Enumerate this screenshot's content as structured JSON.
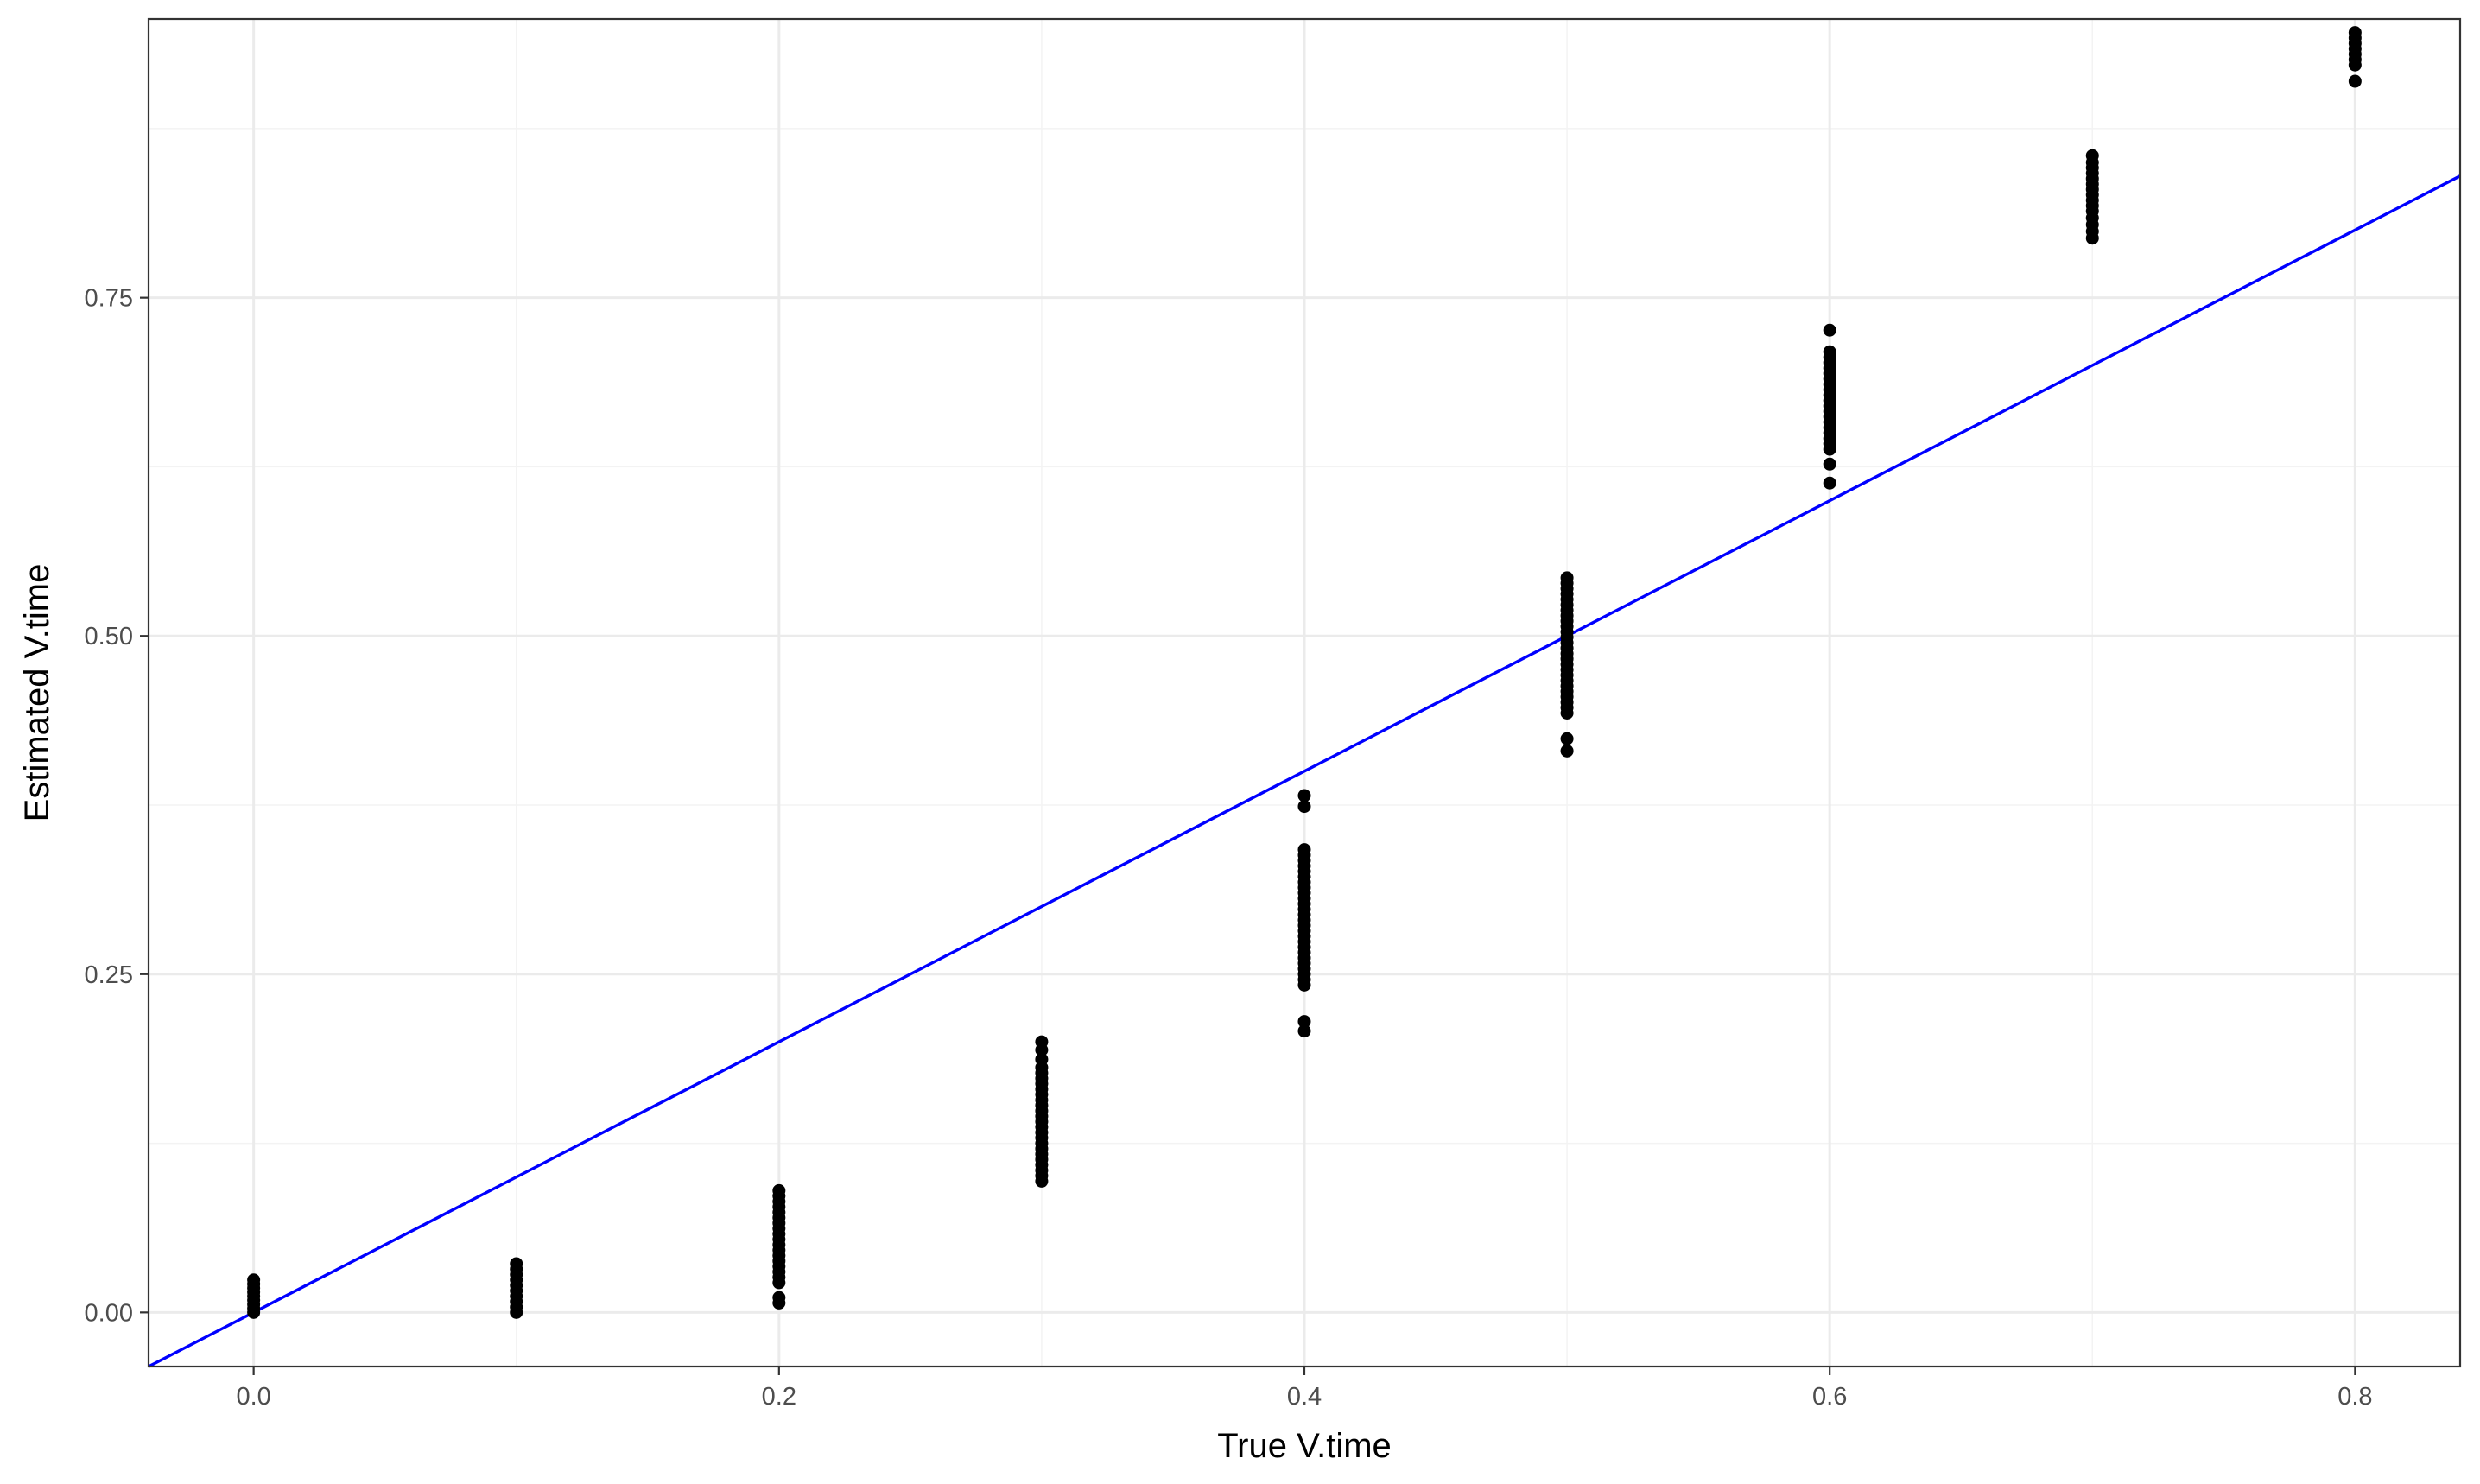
{
  "chart_data": {
    "type": "scatter",
    "xlabel": "True V.time",
    "ylabel": "Estimated V.time",
    "xlim": [
      -0.04,
      0.84
    ],
    "ylim": [
      -0.04,
      0.956
    ],
    "x_ticks": [
      {
        "value": 0.0,
        "label": "0.0"
      },
      {
        "value": 0.2,
        "label": "0.2"
      },
      {
        "value": 0.4,
        "label": "0.4"
      },
      {
        "value": 0.6,
        "label": "0.6"
      },
      {
        "value": 0.8,
        "label": "0.8"
      }
    ],
    "y_ticks": [
      {
        "value": 0.0,
        "label": "0.00"
      },
      {
        "value": 0.25,
        "label": "0.25"
      },
      {
        "value": 0.5,
        "label": "0.50"
      },
      {
        "value": 0.75,
        "label": "0.75"
      }
    ],
    "x_minor_gridlines": [
      0.1,
      0.3,
      0.5,
      0.7
    ],
    "y_minor_gridlines": [
      0.125,
      0.375,
      0.625,
      0.875
    ],
    "grid": true,
    "reference_line": {
      "type": "identity",
      "slope": 1,
      "intercept": 0,
      "color": "#0000ff"
    },
    "point_color": "#000000",
    "series": [
      {
        "points": [
          {
            "x": 0.0,
            "y": 0.0
          },
          {
            "x": 0.0,
            "y": 0.003
          },
          {
            "x": 0.0,
            "y": 0.006
          },
          {
            "x": 0.0,
            "y": 0.009
          },
          {
            "x": 0.0,
            "y": 0.012
          },
          {
            "x": 0.0,
            "y": 0.015
          },
          {
            "x": 0.0,
            "y": 0.018
          },
          {
            "x": 0.0,
            "y": 0.021
          },
          {
            "x": 0.0,
            "y": 0.024
          },
          {
            "x": 0.1,
            "y": 0.0
          },
          {
            "x": 0.1,
            "y": 0.004
          },
          {
            "x": 0.1,
            "y": 0.008
          },
          {
            "x": 0.1,
            "y": 0.012
          },
          {
            "x": 0.1,
            "y": 0.016
          },
          {
            "x": 0.1,
            "y": 0.02
          },
          {
            "x": 0.1,
            "y": 0.024
          },
          {
            "x": 0.1,
            "y": 0.028
          },
          {
            "x": 0.1,
            "y": 0.032
          },
          {
            "x": 0.1,
            "y": 0.036
          },
          {
            "x": 0.2,
            "y": 0.007
          },
          {
            "x": 0.2,
            "y": 0.011
          },
          {
            "x": 0.2,
            "y": 0.022
          },
          {
            "x": 0.2,
            "y": 0.026
          },
          {
            "x": 0.2,
            "y": 0.03
          },
          {
            "x": 0.2,
            "y": 0.034
          },
          {
            "x": 0.2,
            "y": 0.038
          },
          {
            "x": 0.2,
            "y": 0.042
          },
          {
            "x": 0.2,
            "y": 0.046
          },
          {
            "x": 0.2,
            "y": 0.05
          },
          {
            "x": 0.2,
            "y": 0.054
          },
          {
            "x": 0.2,
            "y": 0.058
          },
          {
            "x": 0.2,
            "y": 0.062
          },
          {
            "x": 0.2,
            "y": 0.066
          },
          {
            "x": 0.2,
            "y": 0.07
          },
          {
            "x": 0.2,
            "y": 0.074
          },
          {
            "x": 0.2,
            "y": 0.078
          },
          {
            "x": 0.2,
            "y": 0.082
          },
          {
            "x": 0.2,
            "y": 0.086
          },
          {
            "x": 0.2,
            "y": 0.09
          },
          {
            "x": 0.3,
            "y": 0.097
          },
          {
            "x": 0.3,
            "y": 0.101
          },
          {
            "x": 0.3,
            "y": 0.105
          },
          {
            "x": 0.3,
            "y": 0.109
          },
          {
            "x": 0.3,
            "y": 0.113
          },
          {
            "x": 0.3,
            "y": 0.117
          },
          {
            "x": 0.3,
            "y": 0.121
          },
          {
            "x": 0.3,
            "y": 0.125
          },
          {
            "x": 0.3,
            "y": 0.129
          },
          {
            "x": 0.3,
            "y": 0.133
          },
          {
            "x": 0.3,
            "y": 0.137
          },
          {
            "x": 0.3,
            "y": 0.141
          },
          {
            "x": 0.3,
            "y": 0.145
          },
          {
            "x": 0.3,
            "y": 0.149
          },
          {
            "x": 0.3,
            "y": 0.153
          },
          {
            "x": 0.3,
            "y": 0.157
          },
          {
            "x": 0.3,
            "y": 0.161
          },
          {
            "x": 0.3,
            "y": 0.165
          },
          {
            "x": 0.3,
            "y": 0.169
          },
          {
            "x": 0.3,
            "y": 0.173
          },
          {
            "x": 0.3,
            "y": 0.177
          },
          {
            "x": 0.3,
            "y": 0.181
          },
          {
            "x": 0.3,
            "y": 0.187
          },
          {
            "x": 0.3,
            "y": 0.194
          },
          {
            "x": 0.3,
            "y": 0.2
          },
          {
            "x": 0.4,
            "y": 0.208
          },
          {
            "x": 0.4,
            "y": 0.215
          },
          {
            "x": 0.4,
            "y": 0.242
          },
          {
            "x": 0.4,
            "y": 0.246
          },
          {
            "x": 0.4,
            "y": 0.25
          },
          {
            "x": 0.4,
            "y": 0.254
          },
          {
            "x": 0.4,
            "y": 0.258
          },
          {
            "x": 0.4,
            "y": 0.262
          },
          {
            "x": 0.4,
            "y": 0.266
          },
          {
            "x": 0.4,
            "y": 0.27
          },
          {
            "x": 0.4,
            "y": 0.274
          },
          {
            "x": 0.4,
            "y": 0.278
          },
          {
            "x": 0.4,
            "y": 0.282
          },
          {
            "x": 0.4,
            "y": 0.286
          },
          {
            "x": 0.4,
            "y": 0.29
          },
          {
            "x": 0.4,
            "y": 0.294
          },
          {
            "x": 0.4,
            "y": 0.298
          },
          {
            "x": 0.4,
            "y": 0.302
          },
          {
            "x": 0.4,
            "y": 0.306
          },
          {
            "x": 0.4,
            "y": 0.31
          },
          {
            "x": 0.4,
            "y": 0.314
          },
          {
            "x": 0.4,
            "y": 0.318
          },
          {
            "x": 0.4,
            "y": 0.322
          },
          {
            "x": 0.4,
            "y": 0.326
          },
          {
            "x": 0.4,
            "y": 0.33
          },
          {
            "x": 0.4,
            "y": 0.334
          },
          {
            "x": 0.4,
            "y": 0.338
          },
          {
            "x": 0.4,
            "y": 0.342
          },
          {
            "x": 0.4,
            "y": 0.374
          },
          {
            "x": 0.4,
            "y": 0.382
          },
          {
            "x": 0.5,
            "y": 0.415
          },
          {
            "x": 0.5,
            "y": 0.424
          },
          {
            "x": 0.5,
            "y": 0.443
          },
          {
            "x": 0.5,
            "y": 0.447
          },
          {
            "x": 0.5,
            "y": 0.451
          },
          {
            "x": 0.5,
            "y": 0.455
          },
          {
            "x": 0.5,
            "y": 0.459
          },
          {
            "x": 0.5,
            "y": 0.463
          },
          {
            "x": 0.5,
            "y": 0.467
          },
          {
            "x": 0.5,
            "y": 0.471
          },
          {
            "x": 0.5,
            "y": 0.475
          },
          {
            "x": 0.5,
            "y": 0.479
          },
          {
            "x": 0.5,
            "y": 0.483
          },
          {
            "x": 0.5,
            "y": 0.487
          },
          {
            "x": 0.5,
            "y": 0.491
          },
          {
            "x": 0.5,
            "y": 0.495
          },
          {
            "x": 0.5,
            "y": 0.499
          },
          {
            "x": 0.5,
            "y": 0.503
          },
          {
            "x": 0.5,
            "y": 0.507
          },
          {
            "x": 0.5,
            "y": 0.511
          },
          {
            "x": 0.5,
            "y": 0.515
          },
          {
            "x": 0.5,
            "y": 0.519
          },
          {
            "x": 0.5,
            "y": 0.523
          },
          {
            "x": 0.5,
            "y": 0.527
          },
          {
            "x": 0.5,
            "y": 0.531
          },
          {
            "x": 0.5,
            "y": 0.535
          },
          {
            "x": 0.5,
            "y": 0.539
          },
          {
            "x": 0.5,
            "y": 0.543
          },
          {
            "x": 0.6,
            "y": 0.613
          },
          {
            "x": 0.6,
            "y": 0.627
          },
          {
            "x": 0.6,
            "y": 0.638
          },
          {
            "x": 0.6,
            "y": 0.642
          },
          {
            "x": 0.6,
            "y": 0.646
          },
          {
            "x": 0.6,
            "y": 0.65
          },
          {
            "x": 0.6,
            "y": 0.654
          },
          {
            "x": 0.6,
            "y": 0.658
          },
          {
            "x": 0.6,
            "y": 0.662
          },
          {
            "x": 0.6,
            "y": 0.666
          },
          {
            "x": 0.6,
            "y": 0.67
          },
          {
            "x": 0.6,
            "y": 0.674
          },
          {
            "x": 0.6,
            "y": 0.678
          },
          {
            "x": 0.6,
            "y": 0.682
          },
          {
            "x": 0.6,
            "y": 0.686
          },
          {
            "x": 0.6,
            "y": 0.69
          },
          {
            "x": 0.6,
            "y": 0.694
          },
          {
            "x": 0.6,
            "y": 0.698
          },
          {
            "x": 0.6,
            "y": 0.702
          },
          {
            "x": 0.6,
            "y": 0.706
          },
          {
            "x": 0.6,
            "y": 0.71
          },
          {
            "x": 0.6,
            "y": 0.726
          },
          {
            "x": 0.7,
            "y": 0.794
          },
          {
            "x": 0.7,
            "y": 0.799
          },
          {
            "x": 0.7,
            "y": 0.804
          },
          {
            "x": 0.7,
            "y": 0.809
          },
          {
            "x": 0.7,
            "y": 0.814
          },
          {
            "x": 0.7,
            "y": 0.818
          },
          {
            "x": 0.7,
            "y": 0.822
          },
          {
            "x": 0.7,
            "y": 0.826
          },
          {
            "x": 0.7,
            "y": 0.83
          },
          {
            "x": 0.7,
            "y": 0.834
          },
          {
            "x": 0.7,
            "y": 0.838
          },
          {
            "x": 0.7,
            "y": 0.842
          },
          {
            "x": 0.7,
            "y": 0.846
          },
          {
            "x": 0.7,
            "y": 0.85
          },
          {
            "x": 0.7,
            "y": 0.855
          },
          {
            "x": 0.8,
            "y": 0.91
          },
          {
            "x": 0.8,
            "y": 0.922
          },
          {
            "x": 0.8,
            "y": 0.926
          },
          {
            "x": 0.8,
            "y": 0.93
          },
          {
            "x": 0.8,
            "y": 0.934
          },
          {
            "x": 0.8,
            "y": 0.938
          },
          {
            "x": 0.8,
            "y": 0.942
          },
          {
            "x": 0.8,
            "y": 0.946
          }
        ]
      }
    ]
  }
}
